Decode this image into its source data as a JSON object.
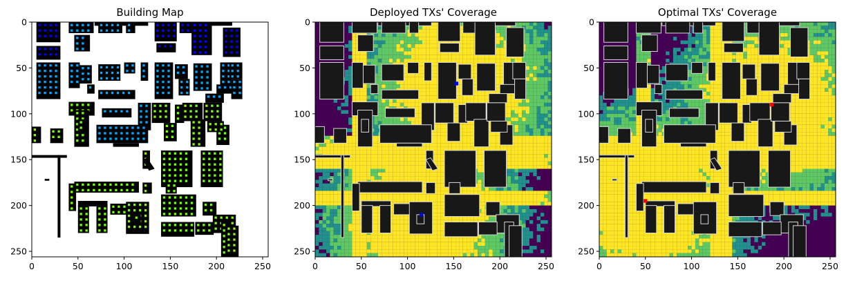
{
  "chart_data": [
    {
      "type": "heatmap",
      "title": "Building Map",
      "x_ticks": [
        0,
        50,
        100,
        150,
        200,
        250
      ],
      "y_ticks": [
        0,
        50,
        100,
        150,
        200,
        250
      ],
      "xlim": [
        0,
        256
      ],
      "ylim": [
        256,
        0
      ],
      "grid": false,
      "colors": {
        "building": "#000000",
        "ground": "#ffffff",
        "region_north": "#0000ff",
        "region_mid": "#00a8ff",
        "region_south": "#7cfc00"
      }
    },
    {
      "type": "heatmap",
      "title": "Deployed TXs' Coverage",
      "x_ticks": [
        0,
        50,
        100,
        150,
        200,
        250
      ],
      "y_ticks": [
        0,
        50,
        100,
        150,
        200,
        250
      ],
      "xlim": [
        0,
        256
      ],
      "ylim": [
        256,
        0
      ],
      "grid": false,
      "transmitters": [
        {
          "x": 153,
          "y": 67
        },
        {
          "x": 115,
          "y": 210
        }
      ],
      "colors": {
        "high": "#fde725",
        "mid": "#5ec962",
        "low": "#21918c",
        "none": "#440154",
        "building": "#181818",
        "tx": "#0000ff"
      }
    },
    {
      "type": "heatmap",
      "title": "Optimal TXs' Coverage",
      "x_ticks": [
        0,
        50,
        100,
        150,
        200,
        250
      ],
      "y_ticks": [
        0,
        50,
        100,
        150,
        200,
        250
      ],
      "xlim": [
        0,
        256
      ],
      "ylim": [
        256,
        0
      ],
      "grid": false,
      "transmitters": [
        {
          "x": 187,
          "y": 90
        },
        {
          "x": 50,
          "y": 195
        }
      ],
      "colors": {
        "high": "#fde725",
        "mid": "#5ec962",
        "low": "#21918c",
        "none": "#440154",
        "building": "#181818",
        "tx": "#ff0000"
      }
    }
  ]
}
